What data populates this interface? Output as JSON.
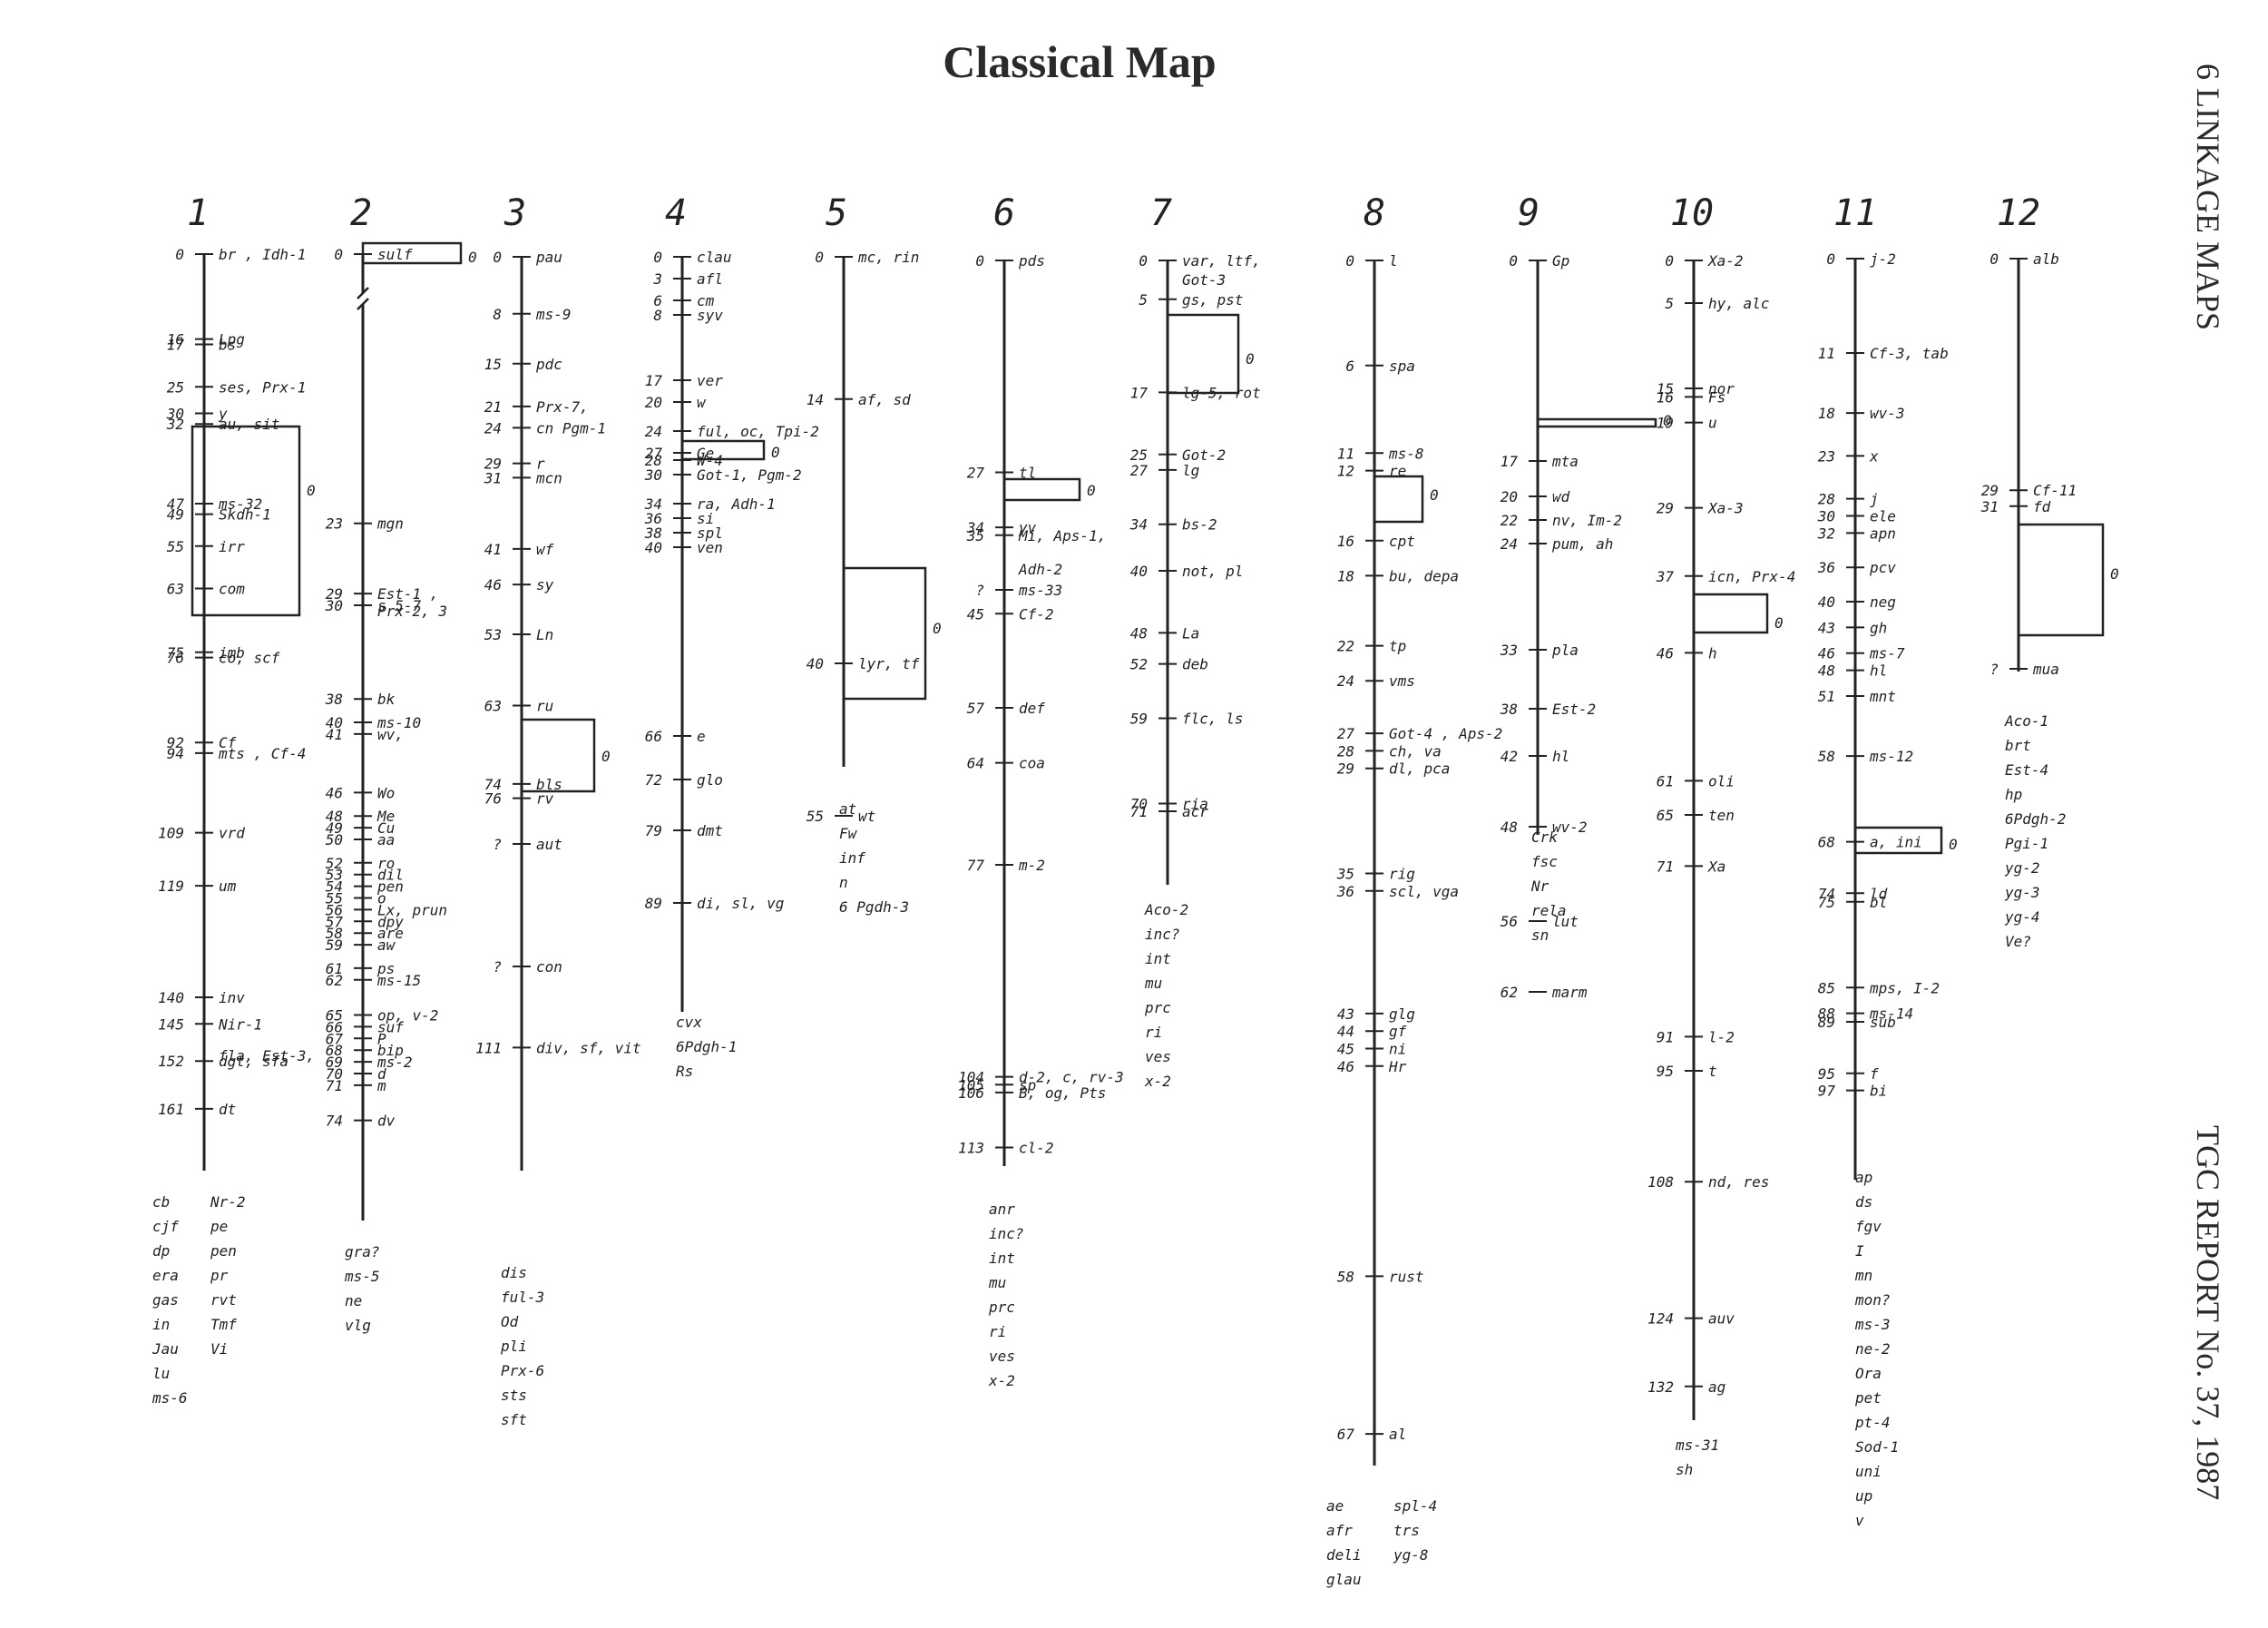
{
  "title": "Classical Map",
  "side_header": "6  LINKAGE MAPS",
  "side_footer": "TGC REPORT No. 37, 1987",
  "centromere_label": "0",
  "chromosomes": [
    {
      "id": "1",
      "loci": [
        {
          "p": "0",
          "g": "br , Idh-1"
        },
        {
          "p": "16",
          "g": "Lpg"
        },
        {
          "p": "17",
          "g": "bs"
        },
        {
          "p": "25",
          "g": "ses, Prx-1"
        },
        {
          "p": "30",
          "g": "y"
        },
        {
          "p": "32",
          "g": "au, sit"
        },
        {
          "p": "47",
          "g": "ms-32"
        },
        {
          "p": "49",
          "g": "Skdh-1"
        },
        {
          "p": "55",
          "g": "irr"
        },
        {
          "p": "63",
          "g": "com"
        },
        {
          "p": "75",
          "g": "imb"
        },
        {
          "p": "76",
          "g": "co, scf"
        },
        {
          "p": "92",
          "g": "Cf"
        },
        {
          "p": "94",
          "g": "mts , Cf-4"
        },
        {
          "p": "109",
          "g": "vrd"
        },
        {
          "p": "119",
          "g": "um"
        },
        {
          "p": "140",
          "g": "inv"
        },
        {
          "p": "",
          "g": "fla, Est-3,"
        },
        {
          "p": "145",
          "g": "Nir-1"
        },
        {
          "p": "152",
          "g": "dgt, sfa"
        },
        {
          "p": "161",
          "g": "dt"
        }
      ],
      "unmapped": [
        "cb",
        "cjf",
        "dp",
        "era",
        "gas",
        "in",
        "Jau",
        "lu",
        "ms-6"
      ],
      "unmapped2": [
        "Nr-2",
        "pe",
        "pen",
        "pr",
        "rvt",
        "Tmf",
        "Vi"
      ]
    },
    {
      "id": "2",
      "loci": [
        {
          "p": "0",
          "g": "sulf"
        },
        {
          "p": "23",
          "g": "mgn"
        },
        {
          "p": "29",
          "g": "Est-1 ,"
        },
        {
          "p": "30",
          "g": "s     5-7"
        },
        {
          "p": "38",
          "g": "bk"
        },
        {
          "p": "40",
          "g": "ms-10"
        },
        {
          "p": "41",
          "g": "wv,"
        },
        {
          "p": "",
          "g": "Prx-2, 3"
        },
        {
          "p": "46",
          "g": "Wo"
        },
        {
          "p": "48",
          "g": "Me"
        },
        {
          "p": "49",
          "g": "Cu"
        },
        {
          "p": "50",
          "g": "aa"
        },
        {
          "p": "52",
          "g": "ro"
        },
        {
          "p": "53",
          "g": "dil"
        },
        {
          "p": "54",
          "g": "pen"
        },
        {
          "p": "55",
          "g": "o"
        },
        {
          "p": "56",
          "g": "Lx, prun"
        },
        {
          "p": "57",
          "g": "dpy"
        },
        {
          "p": "58",
          "g": "are"
        },
        {
          "p": "59",
          "g": "aw"
        },
        {
          "p": "61",
          "g": "ps"
        },
        {
          "p": "62",
          "g": "ms-15"
        },
        {
          "p": "65",
          "g": "op, v-2"
        },
        {
          "p": "66",
          "g": "suf"
        },
        {
          "p": "67",
          "g": "P"
        },
        {
          "p": "68",
          "g": "bip"
        },
        {
          "p": "69",
          "g": "ms-2"
        },
        {
          "p": "70",
          "g": "d"
        },
        {
          "p": "71",
          "g": "m"
        },
        {
          "p": "74",
          "g": "dv"
        }
      ],
      "unmapped": [
        "gra?",
        "ms-5",
        "ne",
        "vlg"
      ]
    },
    {
      "id": "3",
      "loci": [
        {
          "p": "0",
          "g": "pau"
        },
        {
          "p": "8",
          "g": "ms-9"
        },
        {
          "p": "15",
          "g": "pdc"
        },
        {
          "p": "21",
          "g": "Prx-7,"
        },
        {
          "p": "24",
          "g": "cn    Pgm-1"
        },
        {
          "p": "29",
          "g": "r"
        },
        {
          "p": "31",
          "g": "mcn"
        },
        {
          "p": "41",
          "g": "wf"
        },
        {
          "p": "46",
          "g": "sy"
        },
        {
          "p": "53",
          "g": "Ln"
        },
        {
          "p": "63",
          "g": "ru"
        },
        {
          "p": "74",
          "g": "bls"
        },
        {
          "p": "76",
          "g": "rv"
        },
        {
          "p": "?",
          "g": "aut"
        },
        {
          "p": "?",
          "g": "con"
        },
        {
          "p": "111",
          "g": "div, sf, vit"
        }
      ],
      "unmapped": [
        "dis",
        "ful-3",
        "Od",
        "pli",
        "Prx-6",
        "sts",
        "sft"
      ]
    },
    {
      "id": "4",
      "loci": [
        {
          "p": "0",
          "g": "clau"
        },
        {
          "p": "3",
          "g": "afl"
        },
        {
          "p": "6",
          "g": "cm"
        },
        {
          "p": "8",
          "g": "syv"
        },
        {
          "p": "17",
          "g": "ver"
        },
        {
          "p": "20",
          "g": "w"
        },
        {
          "p": "24",
          "g": "ful, oc, Tpi-2"
        },
        {
          "p": "27",
          "g": "Ge"
        },
        {
          "p": "28",
          "g": "W-4"
        },
        {
          "p": "30",
          "g": "Got-1, Pgm-2"
        },
        {
          "p": "34",
          "g": "ra, Adh-1"
        },
        {
          "p": "36",
          "g": "si"
        },
        {
          "p": "38",
          "g": "spl"
        },
        {
          "p": "40",
          "g": "ven"
        },
        {
          "p": "66",
          "g": "e"
        },
        {
          "p": "72",
          "g": "glo"
        },
        {
          "p": "79",
          "g": "dmt"
        },
        {
          "p": "89",
          "g": "di, sl, vg"
        }
      ],
      "unmapped": [
        "cvx",
        "6Pdgh-1",
        "Rs"
      ]
    },
    {
      "id": "5",
      "loci": [
        {
          "p": "0",
          "g": "mc, rin"
        },
        {
          "p": "14",
          "g": "af, sd"
        },
        {
          "p": "40",
          "g": "lyr, tf"
        },
        {
          "p": "55",
          "g": "wt"
        }
      ],
      "unmapped": [
        "at",
        "Fw",
        "inf",
        "n",
        "6 Pgdh-3"
      ]
    },
    {
      "id": "6",
      "loci": [
        {
          "p": "0",
          "g": "pds"
        },
        {
          "p": "27",
          "g": "tl"
        },
        {
          "p": "34",
          "g": "yv"
        },
        {
          "p": "35",
          "g": "Mi, Aps-1,"
        },
        {
          "p": "",
          "g": "Adh-2"
        },
        {
          "p": "?",
          "g": "ms-33"
        },
        {
          "p": "45",
          "g": "Cf-2"
        },
        {
          "p": "57",
          "g": "def"
        },
        {
          "p": "64",
          "g": "coa"
        },
        {
          "p": "77",
          "g": "m-2"
        },
        {
          "p": "104",
          "g": "d-2, c, rv-3"
        },
        {
          "p": "105",
          "g": "sp"
        },
        {
          "p": "106",
          "g": "B, og, Pts"
        },
        {
          "p": "113",
          "g": "cl-2"
        }
      ],
      "unmapped": [
        "anr",
        "inc?",
        "int",
        "mu",
        "prc",
        "ri",
        "ves",
        "x-2"
      ]
    },
    {
      "id": "7",
      "loci": [
        {
          "p": "0",
          "g": "var, ltf,"
        },
        {
          "p": "",
          "g": "Got-3"
        },
        {
          "p": "5",
          "g": "gs, pst"
        },
        {
          "p": "17",
          "g": "lg-5, rot"
        },
        {
          "p": "25",
          "g": "Got-2"
        },
        {
          "p": "27",
          "g": "lg"
        },
        {
          "p": "34",
          "g": "bs-2"
        },
        {
          "p": "40",
          "g": "not, pl"
        },
        {
          "p": "48",
          "g": "La"
        },
        {
          "p": "52",
          "g": "deb"
        },
        {
          "p": "59",
          "g": "flc, ls"
        },
        {
          "p": "70",
          "g": "ria"
        },
        {
          "p": "71",
          "g": "acr"
        }
      ],
      "unmapped": [
        "Aco-2",
        "inc?",
        "int",
        "mu",
        "prc",
        "ri",
        "ves",
        "x-2"
      ]
    },
    {
      "id": "8",
      "loci": [
        {
          "p": "0",
          "g": "l"
        },
        {
          "p": "6",
          "g": "spa"
        },
        {
          "p": "11",
          "g": "ms-8"
        },
        {
          "p": "12",
          "g": "re"
        },
        {
          "p": "16",
          "g": "cpt"
        },
        {
          "p": "18",
          "g": "bu, depa"
        },
        {
          "p": "22",
          "g": "tp"
        },
        {
          "p": "24",
          "g": "vms"
        },
        {
          "p": "27",
          "g": "Got-4 , Aps-2"
        },
        {
          "p": "28",
          "g": "ch, va"
        },
        {
          "p": "29",
          "g": "dl, pca"
        },
        {
          "p": "35",
          "g": "rig"
        },
        {
          "p": "36",
          "g": "scl, vga"
        },
        {
          "p": "43",
          "g": "glg"
        },
        {
          "p": "44",
          "g": "gf"
        },
        {
          "p": "45",
          "g": "ni"
        },
        {
          "p": "46",
          "g": "Hr"
        },
        {
          "p": "58",
          "g": "rust"
        },
        {
          "p": "67",
          "g": "al"
        }
      ],
      "unmapped": [
        "ae",
        "afr",
        "deli",
        "glau"
      ],
      "unmapped2": [
        "spl-4",
        "trs",
        "yg-8"
      ]
    },
    {
      "id": "9",
      "loci": [
        {
          "p": "0",
          "g": "Gp"
        },
        {
          "p": "17",
          "g": "mta"
        },
        {
          "p": "20",
          "g": "wd"
        },
        {
          "p": "22",
          "g": "nv, Im-2"
        },
        {
          "p": "24",
          "g": "pum, ah"
        },
        {
          "p": "33",
          "g": "pla"
        },
        {
          "p": "38",
          "g": "Est-2"
        },
        {
          "p": "42",
          "g": "hl"
        },
        {
          "p": "48",
          "g": "wv-2"
        },
        {
          "p": "56",
          "g": "lut"
        },
        {
          "p": "62",
          "g": "marm"
        }
      ],
      "unmapped": [
        "Crk",
        "fsc",
        "Nr",
        "rela",
        "sn"
      ]
    },
    {
      "id": "10",
      "loci": [
        {
          "p": "0",
          "g": "Xa-2"
        },
        {
          "p": "5",
          "g": "hy, alc"
        },
        {
          "p": "15",
          "g": "nor"
        },
        {
          "p": "16",
          "g": "Fs"
        },
        {
          "p": "19",
          "g": "u"
        },
        {
          "p": "29",
          "g": "Xa-3"
        },
        {
          "p": "37",
          "g": "icn, Prx-4"
        },
        {
          "p": "46",
          "g": "h"
        },
        {
          "p": "61",
          "g": "oli"
        },
        {
          "p": "65",
          "g": "ten"
        },
        {
          "p": "71",
          "g": "Xa"
        },
        {
          "p": "91",
          "g": "l-2"
        },
        {
          "p": "95",
          "g": "t"
        },
        {
          "p": "108",
          "g": "nd, res"
        },
        {
          "p": "124",
          "g": "auv"
        },
        {
          "p": "132",
          "g": "ag"
        }
      ],
      "unmapped": [
        "ms-31",
        "sh"
      ]
    },
    {
      "id": "11",
      "loci": [
        {
          "p": "0",
          "g": "j-2"
        },
        {
          "p": "11",
          "g": "Cf-3, tab"
        },
        {
          "p": "18",
          "g": "wv-3"
        },
        {
          "p": "23",
          "g": "x"
        },
        {
          "p": "28",
          "g": "j"
        },
        {
          "p": "30",
          "g": "ele"
        },
        {
          "p": "32",
          "g": "apn"
        },
        {
          "p": "36",
          "g": "pcv"
        },
        {
          "p": "40",
          "g": "neg"
        },
        {
          "p": "43",
          "g": "gh"
        },
        {
          "p": "46",
          "g": "ms-7"
        },
        {
          "p": "48",
          "g": "hl"
        },
        {
          "p": "51",
          "g": "mnt"
        },
        {
          "p": "58",
          "g": "ms-12"
        },
        {
          "p": "68",
          "g": "a, ini"
        },
        {
          "p": "74",
          "g": "ld"
        },
        {
          "p": "75",
          "g": "bl"
        },
        {
          "p": "85",
          "g": "mps, I-2"
        },
        {
          "p": "88",
          "g": "ms-14"
        },
        {
          "p": "89",
          "g": "sub"
        },
        {
          "p": "95",
          "g": "f"
        },
        {
          "p": "97",
          "g": "bi"
        }
      ],
      "unmapped": [
        "ap",
        "ds",
        "fgv",
        "I",
        "mn",
        "mon?",
        "ms-3",
        "ne-2",
        "Ora",
        "pet",
        "pt-4",
        "Sod-1",
        "uni",
        "up",
        "v"
      ]
    },
    {
      "id": "12",
      "loci": [
        {
          "p": "0",
          "g": "alb"
        },
        {
          "p": "29",
          "g": "Cf-11"
        },
        {
          "p": "31",
          "g": "fd"
        },
        {
          "p": "?",
          "g": "mua"
        }
      ],
      "unmapped": [
        "Aco-1",
        "brt",
        "Est-4",
        "hp",
        "6Pdgh-2",
        "Pgi-1",
        "yg-2",
        "yg-3",
        "yg-4",
        "Ve?"
      ]
    }
  ]
}
